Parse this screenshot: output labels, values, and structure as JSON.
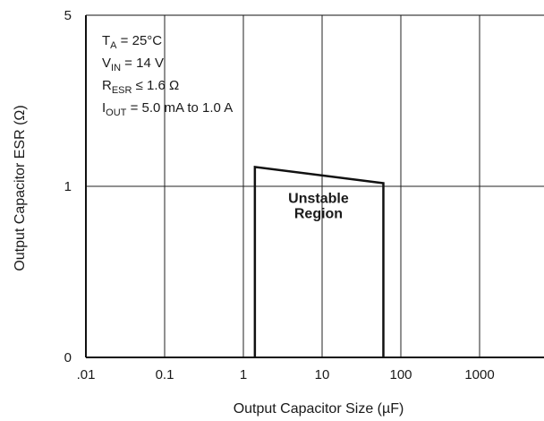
{
  "chart_data": {
    "type": "line",
    "xlabel": "Output Capacitor Size (µF)",
    "ylabel": "Output Capacitor ESR (Ω)",
    "x_scale": "log",
    "y_scale": "nonlinear",
    "x_ticks": [
      {
        "value": 0.01,
        "label": ".01"
      },
      {
        "value": 0.1,
        "label": "0.1"
      },
      {
        "value": 1,
        "label": "1"
      },
      {
        "value": 10,
        "label": "10"
      },
      {
        "value": 100,
        "label": "100"
      },
      {
        "value": 1000,
        "label": "1000"
      }
    ],
    "y_ticks": [
      {
        "value": 0,
        "label": "0"
      },
      {
        "value": 1,
        "label": "1"
      },
      {
        "value": 5,
        "label": "5"
      }
    ],
    "xlim": [
      0.01,
      10000
    ],
    "ylim": [
      0,
      5
    ],
    "grid": true,
    "conditions": [
      {
        "main": "T",
        "sub": "A",
        "rest": " = 25°C"
      },
      {
        "main": "V",
        "sub": "IN",
        "rest": " = 14 V"
      },
      {
        "main": "R",
        "sub": "ESR",
        "rest": " ≤ 1.6 Ω"
      },
      {
        "main": "I",
        "sub": "OUT",
        "rest": " = 5.0 mA to 1.0 A"
      }
    ],
    "series": [
      {
        "points": [
          {
            "x": 1.4,
            "y": 0
          },
          {
            "x": 1.4,
            "y": 1.2
          },
          {
            "x": 60,
            "y": 1.03
          },
          {
            "x": 60,
            "y": 0
          }
        ]
      }
    ],
    "annotations": [
      {
        "text": "Unstable",
        "x": 9,
        "y": 0.8
      },
      {
        "text": "Region",
        "x": 9,
        "y": 0.65
      }
    ]
  }
}
